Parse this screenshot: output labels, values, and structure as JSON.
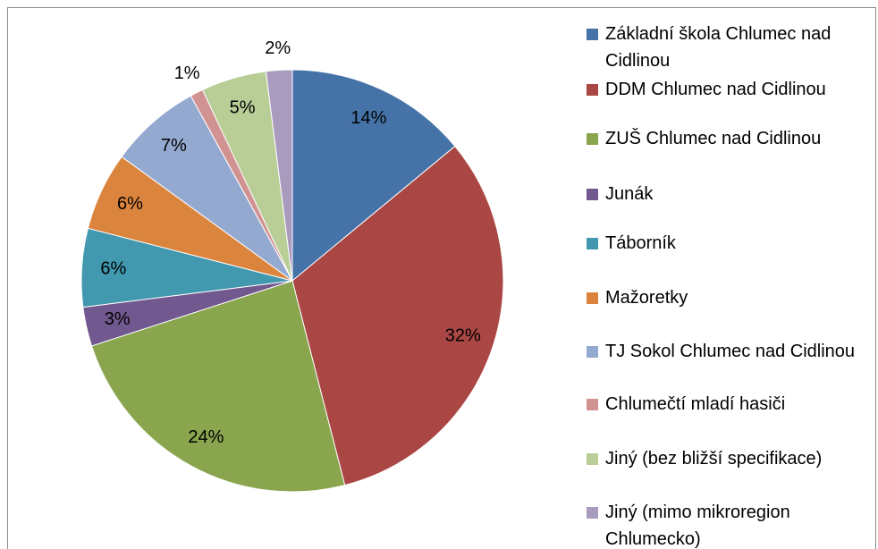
{
  "chart_data": {
    "type": "pie",
    "categories": [
      "Základní škola Chlumec nad Cidlinou",
      "DDM Chlumec nad Cidlinou",
      "ZUŠ Chlumec nad Cidlinou",
      "Junák",
      "Táborník",
      "Mažoretky",
      "TJ Sokol Chlumec nad Cidlinou",
      "Chlumečtí mladí hasiči",
      "Jiný (bez bližší specifikace)",
      "Jiný (mimo mikroregion Chlumecko)"
    ],
    "values": [
      14,
      32,
      24,
      3,
      6,
      6,
      7,
      1,
      5,
      2
    ],
    "value_labels": [
      "14%",
      "32%",
      "24%",
      "3%",
      "6%",
      "6%",
      "7%",
      "1%",
      "5%",
      "2%"
    ],
    "colors": [
      "#4572a7",
      "#aa4643",
      "#89a54e",
      "#71588f",
      "#4198af",
      "#db843d",
      "#93a9cf",
      "#d19392",
      "#b9cd96",
      "#a99bbd"
    ],
    "legend": "right"
  }
}
